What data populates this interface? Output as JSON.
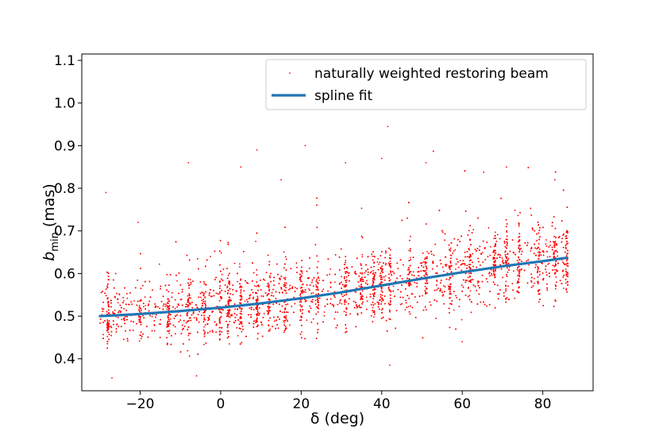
{
  "chart_data": {
    "type": "scatter",
    "xlabel": "δ (deg)",
    "ylabel_main": "b",
    "ylabel_sub": "min",
    "ylabel_suffix": " (mas)",
    "xlim": [
      -34.5,
      92.5
    ],
    "ylim": [
      0.325,
      1.115
    ],
    "xticks": [
      -20,
      0,
      20,
      40,
      60,
      80
    ],
    "xtick_labels": [
      "−20",
      "0",
      "20",
      "40",
      "60",
      "80"
    ],
    "yticks": [
      0.4,
      0.5,
      0.6,
      0.7,
      0.8,
      0.9,
      1.0,
      1.1
    ],
    "ytick_labels": [
      "0.4",
      "0.5",
      "0.6",
      "0.7",
      "0.8",
      "0.9",
      "1.0",
      "1.1"
    ],
    "legend_position": "upper-right",
    "series": [
      {
        "name": "naturally weighted restoring beam",
        "kind": "scatter",
        "color": "#ff0000",
        "x_range": [
          -30,
          86
        ],
        "n_points": 5000,
        "dense_columns": [
          -28,
          -20,
          -13,
          -8,
          -4,
          0,
          2,
          5,
          9,
          12,
          16,
          20,
          24,
          31,
          35,
          38,
          40,
          42,
          47,
          51,
          57,
          62,
          68,
          71,
          74,
          79,
          83,
          86
        ],
        "outliers": [
          {
            "x": -28.5,
            "y": 0.79
          },
          {
            "x": -20.5,
            "y": 0.72
          },
          {
            "x": -8,
            "y": 0.86
          },
          {
            "x": 5,
            "y": 0.85
          },
          {
            "x": 9,
            "y": 0.89
          },
          {
            "x": 21,
            "y": 0.9
          },
          {
            "x": 41.5,
            "y": 0.945
          },
          {
            "x": 31,
            "y": 0.86
          },
          {
            "x": 51,
            "y": 0.86
          },
          {
            "x": 71,
            "y": 0.85
          },
          {
            "x": -27,
            "y": 0.355
          },
          {
            "x": -6,
            "y": 0.36
          },
          {
            "x": 42,
            "y": 0.385
          },
          {
            "x": 60,
            "y": 0.44
          },
          {
            "x": 15,
            "y": 0.82
          },
          {
            "x": 40,
            "y": 0.87
          },
          {
            "x": 83,
            "y": 0.82
          }
        ]
      },
      {
        "name": "spline fit",
        "kind": "line",
        "color": "#1f77b4",
        "x": [
          -30,
          -20,
          -10,
          0,
          10,
          20,
          30,
          40,
          50,
          60,
          70,
          80,
          86
        ],
        "y": [
          0.5,
          0.505,
          0.512,
          0.52,
          0.53,
          0.542,
          0.556,
          0.572,
          0.588,
          0.603,
          0.617,
          0.629,
          0.637
        ]
      }
    ]
  }
}
